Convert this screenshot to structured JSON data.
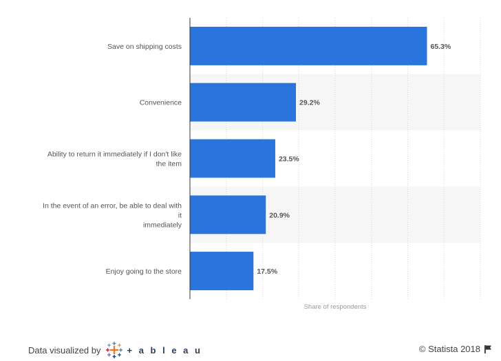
{
  "chart_data": {
    "type": "bar",
    "orientation": "horizontal",
    "categories": [
      [
        "Save on shipping costs"
      ],
      [
        "Convenience"
      ],
      [
        "Ability to return it immediately if I don't like",
        "the item"
      ],
      [
        "In the event of an error, be able to deal with",
        "it",
        "immediately"
      ],
      [
        "Enjoy going to the store"
      ]
    ],
    "values": [
      65.3,
      29.2,
      23.5,
      20.9,
      17.5
    ],
    "value_labels": [
      "65.3%",
      "29.2%",
      "23.5%",
      "20.9%",
      "17.5%"
    ],
    "xlabel": "Share of respondents",
    "xlim": [
      0,
      80
    ],
    "bar_color": "#2a75dd",
    "grid": true
  },
  "footer": {
    "credit_text": "Data visualized by",
    "tableau_word": "+ a b l e a u",
    "copyright": "© Statista 2018"
  },
  "colors": {
    "band": "#f6f6f6",
    "grid": "#d8d8d8",
    "axis": "#333333"
  }
}
